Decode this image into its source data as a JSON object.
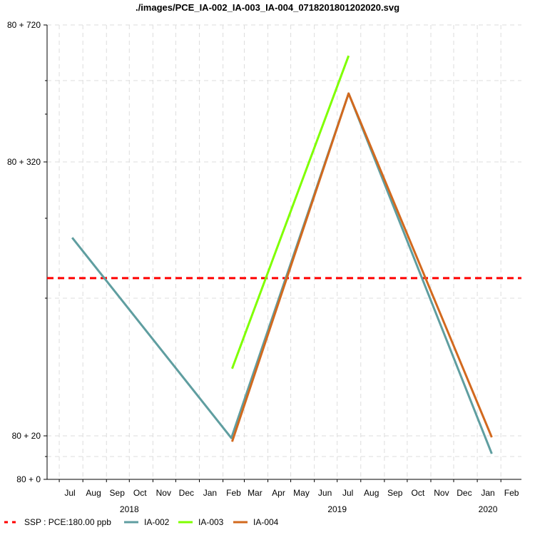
{
  "chart_data": {
    "type": "line",
    "title": "./images/PCE_IA-002_IA-003_IA-004_0718201801202020.svg",
    "xlabel": "",
    "ylabel": "",
    "x_tick_months": [
      "Jul",
      "Aug",
      "Sep",
      "Oct",
      "Nov",
      "Dec",
      "Jan",
      "Feb",
      "Mar",
      "Apr",
      "May",
      "Jun",
      "Jul",
      "Aug",
      "Sep",
      "Oct",
      "Nov",
      "Dec",
      "Jan",
      "Feb"
    ],
    "x_tick_years": [
      "2018",
      "2019",
      "2020"
    ],
    "y_ticks": [
      "80 + 0",
      "80 + 20",
      "80 + 320",
      "80 + 720"
    ],
    "y_scale": "symlog (offset 80)",
    "grid": true,
    "reference_line": {
      "label": "SSP : PCE:180.00 ppb",
      "value": 180,
      "color": "#ff0000",
      "style": "dashed"
    },
    "series": [
      {
        "name": "IA-002",
        "color": "#5f9ea0",
        "points": [
          [
            "2018-07-18",
            230
          ],
          [
            "2019-02-12",
            97
          ],
          [
            "2019-07-16",
            560
          ],
          [
            "2020-01-20",
            85
          ]
        ]
      },
      {
        "name": "IA-003",
        "color": "#7fff00",
        "points": [
          [
            "2019-02-13",
            120
          ],
          [
            "2019-07-16",
            680
          ]
        ]
      },
      {
        "name": "IA-004",
        "color": "#d2691e",
        "points": [
          [
            "2019-02-13",
            93
          ],
          [
            "2019-07-16",
            560
          ],
          [
            "2020-01-20",
            98
          ]
        ]
      }
    ],
    "legend_position": "bottom-left"
  },
  "legend": {
    "items": [
      {
        "label": "SSP : PCE:180.00 ppb",
        "color": "#ff0000",
        "style": "dashed"
      },
      {
        "label": "IA-002",
        "color": "#5f9ea0",
        "style": "solid"
      },
      {
        "label": "IA-003",
        "color": "#7fff00",
        "style": "solid"
      },
      {
        "label": "IA-004",
        "color": "#d2691e",
        "style": "solid"
      }
    ]
  }
}
